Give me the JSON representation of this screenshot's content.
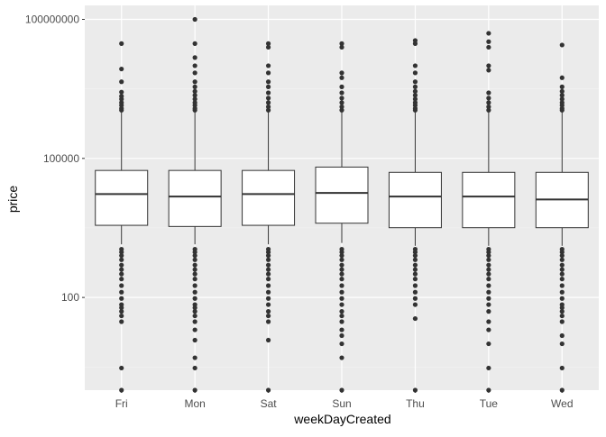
{
  "chart_data": {
    "type": "boxplot",
    "title": "",
    "xlabel": "weekDayCreated",
    "ylabel": "price",
    "y_scale": "log10",
    "ylim": [
      1,
      200000000
    ],
    "y_ticks": [
      {
        "value": 100,
        "label": "100"
      },
      {
        "value": 100000,
        "label": "100000"
      },
      {
        "value": 100000000,
        "label": "100000000"
      }
    ],
    "categories": [
      "Fri",
      "Mon",
      "Sat",
      "Sun",
      "Thu",
      "Tue",
      "Wed"
    ],
    "series": [
      {
        "category": "Fri",
        "lower_whisker": 1400,
        "q1": 3600,
        "median": 17000,
        "q3": 55000,
        "upper_whisker": 1000000,
        "outliers_high": [
          1100000,
          1200000,
          1400000,
          1600000,
          1900000,
          2200000,
          2700000,
          4500000,
          8500000,
          30000000
        ],
        "outliers_low": [
          1100,
          950,
          800,
          650,
          500,
          400,
          320,
          250,
          180,
          130,
          95,
          70,
          60,
          50,
          40,
          30,
          3,
          1
        ]
      },
      {
        "category": "Mon",
        "lower_whisker": 1400,
        "q1": 3400,
        "median": 15000,
        "q3": 55000,
        "upper_whisker": 1000000,
        "outliers_high": [
          1100000,
          1200000,
          1400000,
          1600000,
          1900000,
          2300000,
          2800000,
          3500000,
          4500000,
          7000000,
          10000000,
          15000000,
          30000000,
          100000000
        ],
        "outliers_low": [
          1100,
          950,
          800,
          650,
          500,
          400,
          320,
          250,
          180,
          130,
          95,
          70,
          60,
          50,
          40,
          30,
          20,
          12,
          5,
          3,
          1
        ]
      },
      {
        "category": "Sat",
        "lower_whisker": 1400,
        "q1": 3600,
        "median": 17000,
        "q3": 55000,
        "upper_whisker": 1000000,
        "outliers_high": [
          1100000,
          1300000,
          1600000,
          2000000,
          2600000,
          3500000,
          4500000,
          7000000,
          10000000,
          25000000,
          30000000
        ],
        "outliers_low": [
          1100,
          950,
          800,
          650,
          500,
          400,
          320,
          250,
          180,
          130,
          95,
          70,
          50,
          40,
          30,
          12,
          1
        ]
      },
      {
        "category": "Sun",
        "lower_whisker": 1500,
        "q1": 4000,
        "median": 18000,
        "q3": 65000,
        "upper_whisker": 1000000,
        "outliers_high": [
          1100000,
          1300000,
          1600000,
          2000000,
          2600000,
          3500000,
          5500000,
          7000000,
          25000000,
          30000000
        ],
        "outliers_low": [
          1100,
          950,
          800,
          650,
          500,
          400,
          320,
          250,
          180,
          130,
          95,
          70,
          50,
          40,
          30,
          20,
          15,
          10,
          5,
          1
        ]
      },
      {
        "category": "Thu",
        "lower_whisker": 1300,
        "q1": 3200,
        "median": 15000,
        "q3": 50000,
        "upper_whisker": 1000000,
        "outliers_high": [
          1100000,
          1200000,
          1400000,
          1600000,
          1900000,
          2300000,
          2800000,
          3500000,
          4500000,
          7000000,
          10000000,
          30000000,
          35000000
        ],
        "outliers_low": [
          1100,
          950,
          800,
          650,
          500,
          400,
          320,
          250,
          180,
          130,
          95,
          70,
          35,
          1
        ]
      },
      {
        "category": "Tue",
        "lower_whisker": 1300,
        "q1": 3200,
        "median": 15000,
        "q3": 50000,
        "upper_whisker": 1000000,
        "outliers_high": [
          1100000,
          1300000,
          1600000,
          2000000,
          2600000,
          8000000,
          10000000,
          25000000,
          33000000,
          50000000
        ],
        "outliers_low": [
          1100,
          950,
          800,
          650,
          500,
          400,
          320,
          250,
          180,
          130,
          95,
          70,
          50,
          30,
          20,
          10,
          3,
          1
        ]
      },
      {
        "category": "Wed",
        "lower_whisker": 1300,
        "q1": 3200,
        "median": 13000,
        "q3": 50000,
        "upper_whisker": 1000000,
        "outliers_high": [
          1100000,
          1200000,
          1400000,
          1600000,
          1900000,
          2300000,
          2800000,
          3500000,
          5500000,
          28000000
        ],
        "outliers_low": [
          1100,
          950,
          800,
          650,
          500,
          400,
          320,
          250,
          180,
          130,
          95,
          70,
          60,
          50,
          40,
          30,
          15,
          10,
          3,
          1
        ]
      }
    ],
    "grid": true,
    "legend": "none",
    "colors": {
      "panel_background": "#ebebeb",
      "grid_major": "#ffffff",
      "grid_minor": "#f2f2f2",
      "box_fill": "#ffffff",
      "box_stroke": "#333333",
      "point": "#333333",
      "tick_label": "#4d4d4d",
      "axis_title": "#000000"
    }
  }
}
